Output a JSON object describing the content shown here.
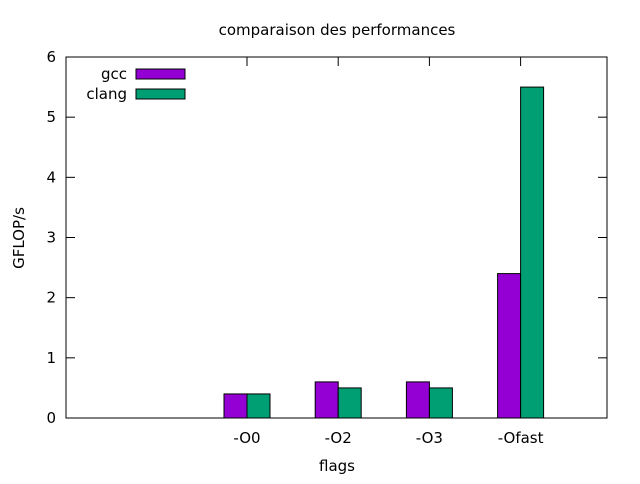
{
  "chart_data": {
    "type": "bar",
    "title": "comparaison des performances",
    "xlabel": "flags",
    "ylabel": "GFLOP/s",
    "categories": [
      "-O0",
      "-O2",
      "-O3",
      "-Ofast"
    ],
    "series": [
      {
        "name": "gcc",
        "values": [
          0.4,
          0.6,
          0.6,
          2.4
        ],
        "color": "#9400d3"
      },
      {
        "name": "clang",
        "values": [
          0.4,
          0.5,
          0.5,
          5.5
        ],
        "color": "#009e73"
      }
    ],
    "ylim": [
      0,
      6
    ],
    "yticks": [
      "0",
      "1",
      "2",
      "3",
      "4",
      "5",
      "6"
    ],
    "grid": false,
    "legend": "top-left"
  }
}
